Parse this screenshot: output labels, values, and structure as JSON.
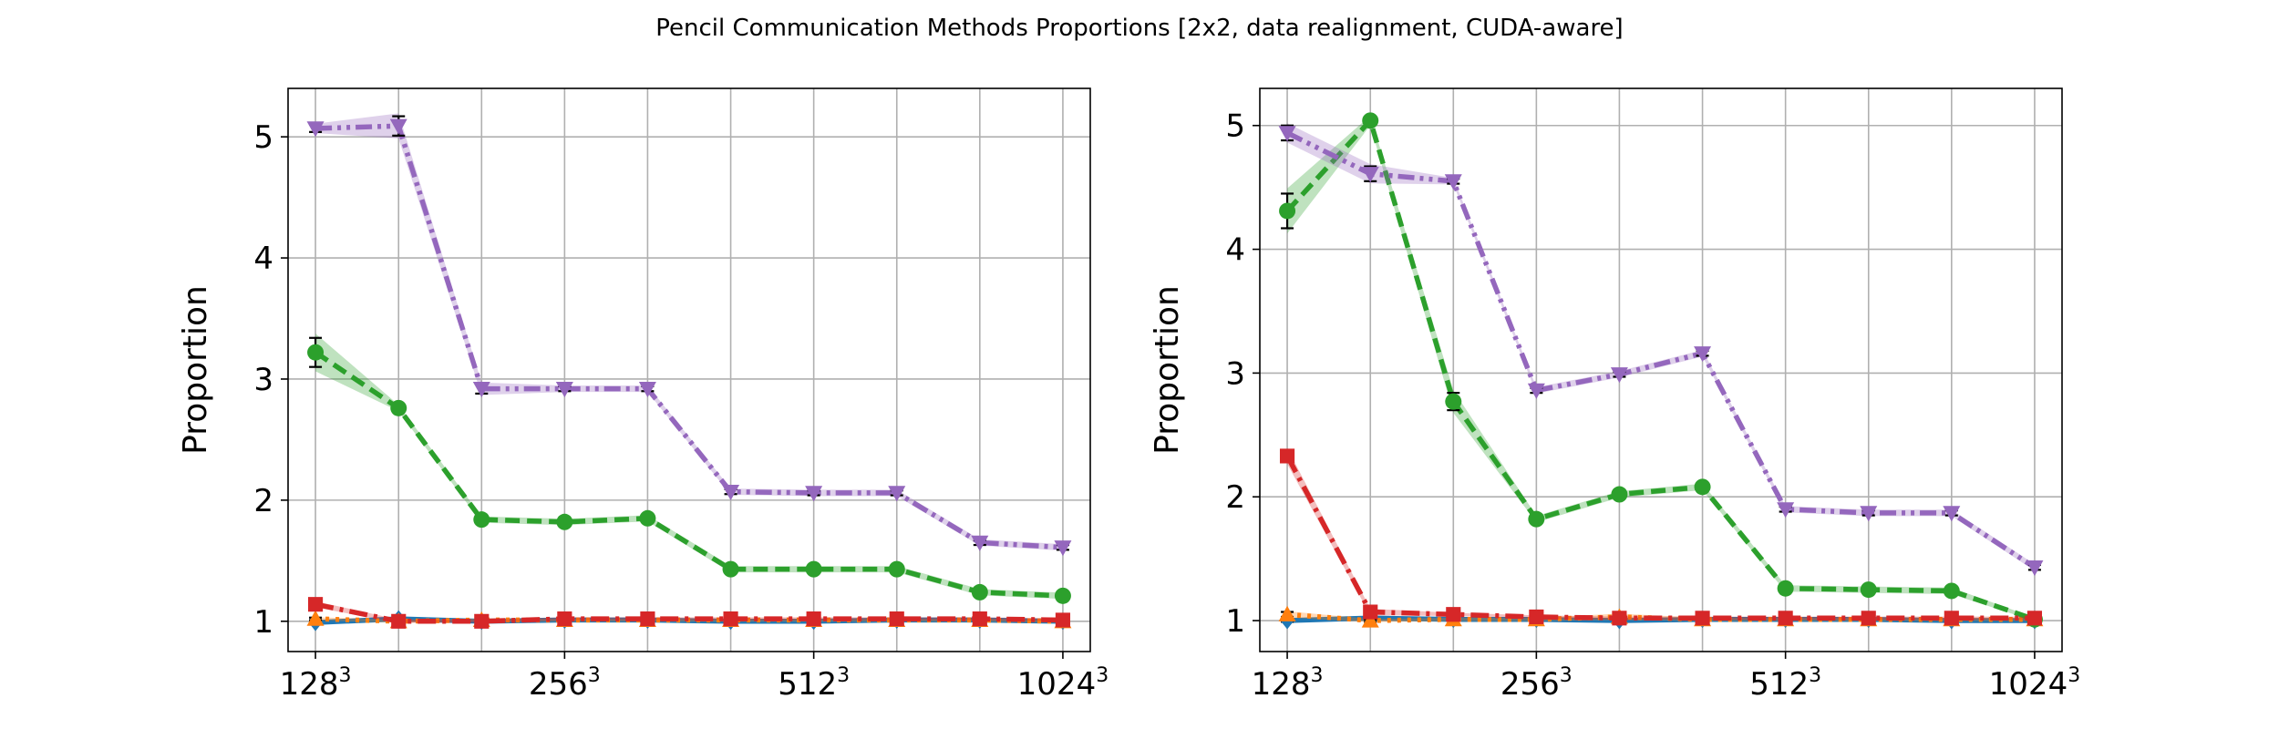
{
  "figure": {
    "title": "Pencil Communication Methods Proportions [2x2, data realignment, CUDA-aware]"
  },
  "chart_data": [
    {
      "type": "line",
      "title": "",
      "xlabel": "",
      "ylabel": "Proportion",
      "x_scale": "log2",
      "x_values": [
        128,
        161.3,
        203.2,
        256,
        322.5,
        406.4,
        512,
        645.1,
        812.7,
        1024
      ],
      "x_ticks": [
        128,
        256,
        512,
        1024
      ],
      "x_tick_labels": [
        {
          "base": "128",
          "exp": "3"
        },
        {
          "base": "256",
          "exp": "3"
        },
        {
          "base": "512",
          "exp": "3"
        },
        {
          "base": "1024",
          "exp": "3"
        }
      ],
      "ylim": [
        0.75,
        5.4
      ],
      "y_ticks": [
        1,
        2,
        3,
        4,
        5
      ],
      "y_tick_labels": [
        "1",
        "2",
        "3",
        "4",
        "5"
      ],
      "grid": true,
      "series": [
        {
          "color": "#1f77b4",
          "linestyle": "solid",
          "marker": "diamond",
          "values": [
            0.99,
            1.02,
            1.0,
            1.01,
            1.01,
            1.0,
            1.0,
            1.01,
            1.01,
            1.0
          ],
          "err": [
            0.01,
            0.01,
            0.01,
            0.01,
            0.01,
            0.01,
            0.01,
            0.01,
            0.01,
            0.01
          ]
        },
        {
          "color": "#ff7f0e",
          "linestyle": "dotted",
          "marker": "triangle-up",
          "values": [
            1.02,
            1.0,
            1.01,
            1.01,
            1.01,
            1.01,
            1.01,
            1.01,
            1.01,
            1.0
          ],
          "err": [
            0.01,
            0.01,
            0.01,
            0.01,
            0.01,
            0.01,
            0.01,
            0.01,
            0.01,
            0.01
          ]
        },
        {
          "color": "#2ca02c",
          "linestyle": "dashed",
          "marker": "circle",
          "values": [
            3.22,
            2.76,
            1.84,
            1.82,
            1.85,
            1.43,
            1.43,
            1.43,
            1.24,
            1.21
          ],
          "err": [
            0.12,
            0.02,
            0.02,
            0.02,
            0.02,
            0.02,
            0.02,
            0.02,
            0.02,
            0.02
          ]
        },
        {
          "color": "#d62728",
          "linestyle": "dashdot",
          "marker": "square",
          "values": [
            1.14,
            1.0,
            1.0,
            1.02,
            1.02,
            1.02,
            1.02,
            1.02,
            1.02,
            1.01
          ],
          "err": [
            0.02,
            0.01,
            0.01,
            0.01,
            0.01,
            0.01,
            0.01,
            0.01,
            0.01,
            0.01
          ]
        },
        {
          "color": "#9467bd",
          "linestyle": "dashdotdot",
          "marker": "triangle-down",
          "values": [
            5.07,
            5.09,
            2.92,
            2.92,
            2.92,
            2.07,
            2.06,
            2.06,
            1.65,
            1.61
          ],
          "err": [
            0.03,
            0.08,
            0.04,
            0.02,
            0.02,
            0.02,
            0.02,
            0.02,
            0.02,
            0.02
          ]
        }
      ]
    },
    {
      "type": "line",
      "title": "",
      "xlabel": "",
      "ylabel": "Proportion",
      "x_scale": "log2",
      "x_values": [
        128,
        161.3,
        203.2,
        256,
        322.5,
        406.4,
        512,
        645.1,
        812.7,
        1024
      ],
      "x_ticks": [
        128,
        256,
        512,
        1024
      ],
      "x_tick_labels": [
        {
          "base": "128",
          "exp": "3"
        },
        {
          "base": "256",
          "exp": "3"
        },
        {
          "base": "512",
          "exp": "3"
        },
        {
          "base": "1024",
          "exp": "3"
        }
      ],
      "ylim": [
        0.75,
        5.3
      ],
      "y_ticks": [
        1,
        2,
        3,
        4,
        5
      ],
      "y_tick_labels": [
        "1",
        "2",
        "3",
        "4",
        "5"
      ],
      "grid": true,
      "series": [
        {
          "color": "#1f77b4",
          "linestyle": "solid",
          "marker": "diamond",
          "values": [
            1.0,
            1.02,
            1.01,
            1.01,
            1.0,
            1.01,
            1.01,
            1.01,
            1.0,
            1.0
          ],
          "err": [
            0.01,
            0.01,
            0.01,
            0.01,
            0.01,
            0.01,
            0.01,
            0.01,
            0.01,
            0.01
          ]
        },
        {
          "color": "#ff7f0e",
          "linestyle": "dotted",
          "marker": "triangle-up",
          "values": [
            1.05,
            1.0,
            1.01,
            1.01,
            1.03,
            1.01,
            1.01,
            1.01,
            1.01,
            1.01
          ],
          "err": [
            0.02,
            0.01,
            0.01,
            0.01,
            0.02,
            0.01,
            0.01,
            0.01,
            0.01,
            0.01
          ]
        },
        {
          "color": "#2ca02c",
          "linestyle": "dashed",
          "marker": "circle",
          "values": [
            4.31,
            5.04,
            2.77,
            1.82,
            2.02,
            2.08,
            1.26,
            1.25,
            1.24,
            1.01
          ],
          "err": [
            0.14,
            0.03,
            0.07,
            0.02,
            0.02,
            0.02,
            0.02,
            0.02,
            0.02,
            0.01
          ]
        },
        {
          "color": "#d62728",
          "linestyle": "dashdot",
          "marker": "square",
          "values": [
            2.33,
            1.07,
            1.05,
            1.03,
            1.02,
            1.02,
            1.02,
            1.02,
            1.02,
            1.02
          ],
          "err": [
            0.05,
            0.02,
            0.01,
            0.01,
            0.01,
            0.01,
            0.01,
            0.01,
            0.01,
            0.01
          ]
        },
        {
          "color": "#9467bd",
          "linestyle": "dashdotdot",
          "marker": "triangle-down",
          "values": [
            4.94,
            4.61,
            4.55,
            2.86,
            2.99,
            3.16,
            1.9,
            1.87,
            1.87,
            1.43
          ],
          "err": [
            0.06,
            0.06,
            0.02,
            0.02,
            0.02,
            0.02,
            0.02,
            0.02,
            0.02,
            0.02
          ]
        }
      ]
    }
  ]
}
